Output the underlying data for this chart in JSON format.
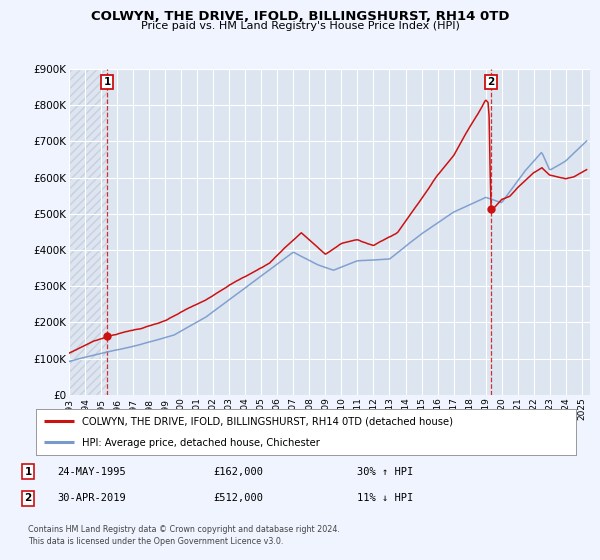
{
  "title": "COLWYN, THE DRIVE, IFOLD, BILLINGSHURST, RH14 0TD",
  "subtitle": "Price paid vs. HM Land Registry's House Price Index (HPI)",
  "bg_color": "#f0f4ff",
  "plot_bg_color": "#dde5f0",
  "grid_color": "#ffffff",
  "hatch_color": "#c8d0e0",
  "line1_color": "#cc1111",
  "line2_color": "#7799cc",
  "marker_color": "#cc1111",
  "ylim": [
    0,
    900000
  ],
  "xlim_start": 1993.0,
  "xlim_end": 2025.5,
  "yticks": [
    0,
    100000,
    200000,
    300000,
    400000,
    500000,
    600000,
    700000,
    800000,
    900000
  ],
  "ytick_labels": [
    "£0",
    "£100K",
    "£200K",
    "£300K",
    "£400K",
    "£500K",
    "£600K",
    "£700K",
    "£800K",
    "£900K"
  ],
  "xticks": [
    1993,
    1994,
    1995,
    1996,
    1997,
    1998,
    1999,
    2000,
    2001,
    2002,
    2003,
    2004,
    2005,
    2006,
    2007,
    2008,
    2009,
    2010,
    2011,
    2012,
    2013,
    2014,
    2015,
    2016,
    2017,
    2018,
    2019,
    2020,
    2021,
    2022,
    2023,
    2024,
    2025
  ],
  "marker1_x": 1995.39,
  "marker1_y": 162000,
  "marker2_x": 2019.33,
  "marker2_y": 512000,
  "legend_line1": "COLWYN, THE DRIVE, IFOLD, BILLINGSHURST, RH14 0TD (detached house)",
  "legend_line2": "HPI: Average price, detached house, Chichester",
  "ann1_date": "24-MAY-1995",
  "ann1_price": "£162,000",
  "ann1_hpi": "30% ↑ HPI",
  "ann2_date": "30-APR-2019",
  "ann2_price": "£512,000",
  "ann2_hpi": "11% ↓ HPI",
  "footer": "Contains HM Land Registry data © Crown copyright and database right 2024.\nThis data is licensed under the Open Government Licence v3.0."
}
